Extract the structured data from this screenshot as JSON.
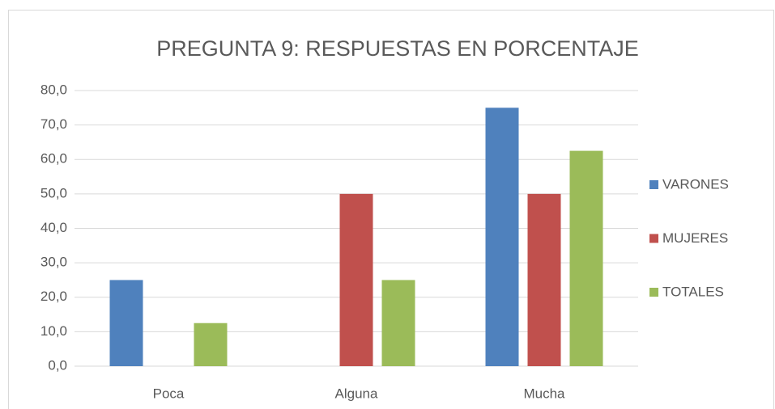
{
  "chart_data": {
    "type": "bar",
    "title": "PREGUNTA 9: RESPUESTAS EN PORCENTAJE",
    "categories": [
      "Poca",
      "Alguna",
      "Mucha"
    ],
    "series": [
      {
        "name": "VARONES",
        "color": "#4f81bd",
        "values": [
          25,
          0,
          75
        ]
      },
      {
        "name": "MUJERES",
        "color": "#c0504d",
        "values": [
          0,
          50,
          50
        ]
      },
      {
        "name": "TOTALES",
        "color": "#9bbb59",
        "values": [
          12.5,
          25,
          62.5
        ]
      }
    ],
    "ylim": [
      0,
      80
    ],
    "yticks": [
      {
        "value": 0,
        "label": "0,0"
      },
      {
        "value": 10,
        "label": "10,0"
      },
      {
        "value": 20,
        "label": "20,0"
      },
      {
        "value": 30,
        "label": "30,0"
      },
      {
        "value": 40,
        "label": "40,0"
      },
      {
        "value": 50,
        "label": "50,0"
      },
      {
        "value": 60,
        "label": "60,0"
      },
      {
        "value": 70,
        "label": "70,0"
      },
      {
        "value": 80,
        "label": "80,0"
      }
    ],
    "grid": true,
    "legend": "right"
  }
}
